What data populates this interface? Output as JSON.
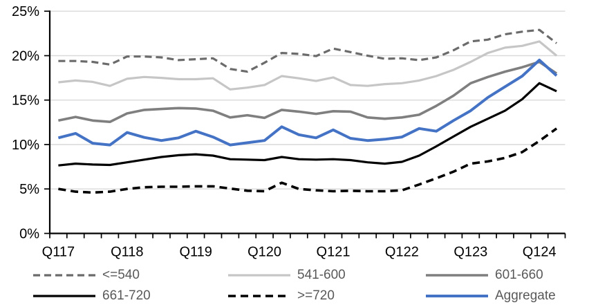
{
  "chart_data": {
    "type": "line",
    "title": "",
    "xlabel": "",
    "ylabel": "",
    "grid": true,
    "legend_position": "bottom",
    "y_axis": {
      "min": 0,
      "max": 25,
      "step": 5,
      "unit": "%"
    },
    "y_tick_labels": [
      "0%",
      "5%",
      "10%",
      "15%",
      "20%",
      "25%"
    ],
    "x_tick_labels": [
      "Q117",
      "Q118",
      "Q119",
      "Q120",
      "Q121",
      "Q122",
      "Q123",
      "Q124"
    ],
    "x_tick_positions": [
      0,
      4,
      8,
      12,
      16,
      20,
      24,
      28
    ],
    "x_unit": "quarter",
    "n_points": 30,
    "axis_color": "#000000",
    "gridline_color": "#d9d9d9",
    "series": [
      {
        "id": "le540",
        "name": "<=540",
        "color": "#6b6b6b",
        "dashed": true,
        "values": [
          19.4,
          19.4,
          19.3,
          19.0,
          19.9,
          19.9,
          19.8,
          19.5,
          19.6,
          19.7,
          18.5,
          18.2,
          19.2,
          20.3,
          20.2,
          19.95,
          20.8,
          20.4,
          20.0,
          19.65,
          19.7,
          19.5,
          19.8,
          20.6,
          21.6,
          21.8,
          22.4,
          22.7,
          22.9,
          21.4
        ]
      },
      {
        "id": "541-600",
        "name": "541-600",
        "color": "#c6c6c6",
        "dashed": false,
        "values": [
          17.0,
          17.2,
          17.05,
          16.6,
          17.4,
          17.6,
          17.5,
          17.35,
          17.35,
          17.45,
          16.2,
          16.4,
          16.7,
          17.7,
          17.45,
          17.15,
          17.55,
          16.7,
          16.6,
          16.8,
          16.9,
          17.2,
          17.7,
          18.4,
          19.3,
          20.3,
          20.9,
          21.1,
          21.6,
          20.0
        ]
      },
      {
        "id": "601-660",
        "name": "601-660",
        "color": "#7f7f7f",
        "dashed": false,
        "values": [
          12.7,
          13.1,
          12.7,
          12.55,
          13.5,
          13.9,
          14.0,
          14.1,
          14.05,
          13.8,
          13.05,
          13.3,
          13.0,
          13.9,
          13.7,
          13.45,
          13.75,
          13.7,
          13.05,
          12.9,
          13.05,
          13.35,
          14.35,
          15.5,
          16.9,
          17.6,
          18.2,
          18.7,
          19.3,
          18.0
        ]
      },
      {
        "id": "661-720",
        "name": "661-720",
        "color": "#000000",
        "dashed": false,
        "values": [
          7.65,
          7.85,
          7.75,
          7.7,
          8.0,
          8.3,
          8.6,
          8.8,
          8.9,
          8.75,
          8.35,
          8.3,
          8.25,
          8.6,
          8.35,
          8.3,
          8.35,
          8.25,
          8.0,
          7.85,
          8.05,
          8.75,
          9.8,
          10.9,
          12.0,
          12.9,
          13.8,
          15.1,
          16.9,
          16.0
        ]
      },
      {
        "id": "ge720",
        "name": ">=720",
        "color": "#000000",
        "dashed": true,
        "values": [
          5.0,
          4.7,
          4.6,
          4.7,
          5.0,
          5.2,
          5.25,
          5.25,
          5.3,
          5.3,
          5.05,
          4.8,
          4.75,
          5.7,
          5.0,
          4.85,
          4.75,
          4.8,
          4.75,
          4.75,
          4.85,
          5.5,
          6.2,
          6.95,
          7.85,
          8.1,
          8.5,
          9.15,
          10.4,
          11.8
        ]
      },
      {
        "id": "aggregate",
        "name": "Aggregate",
        "color": "#4472c4",
        "dashed": false,
        "values": [
          10.75,
          11.25,
          10.15,
          9.95,
          11.35,
          10.8,
          10.45,
          10.75,
          11.5,
          10.85,
          9.95,
          10.2,
          10.45,
          12.0,
          11.1,
          10.75,
          11.65,
          10.7,
          10.45,
          10.6,
          10.85,
          11.8,
          11.5,
          12.7,
          13.8,
          15.3,
          16.5,
          17.7,
          19.5,
          17.75
        ]
      }
    ]
  }
}
